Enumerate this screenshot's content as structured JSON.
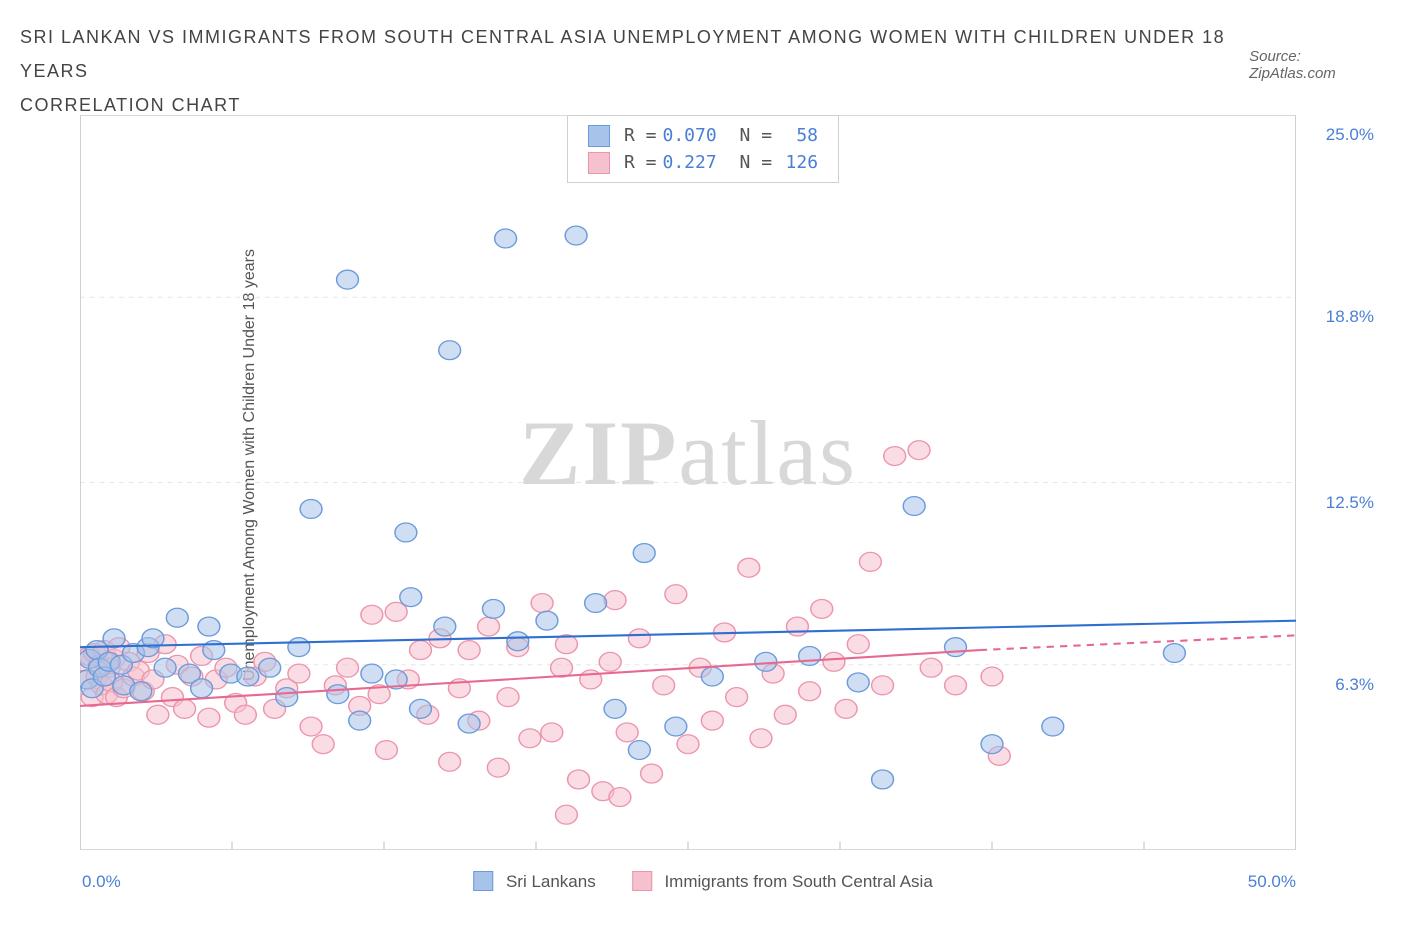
{
  "title_line1": "SRI LANKAN VS IMMIGRANTS FROM SOUTH CENTRAL ASIA UNEMPLOYMENT AMONG WOMEN WITH CHILDREN UNDER 18 YEARS",
  "title_line2": "CORRELATION CHART",
  "source_label": "Source: ZipAtlas.com",
  "chart": {
    "type": "scatter",
    "ylabel": "Unemployment Among Women with Children Under 18 years",
    "xlim": [
      0,
      50
    ],
    "ylim": [
      0,
      25
    ],
    "xtick_labels": [
      "0.0%",
      "50.0%"
    ],
    "ytick_positions": [
      6.3,
      12.5,
      18.8,
      25.0
    ],
    "ytick_labels": [
      "6.3%",
      "12.5%",
      "18.8%",
      "25.0%"
    ],
    "grid_color": "#e6e6e6",
    "axis_color": "#cccccc",
    "background_color": "#ffffff",
    "marker_radius": 9,
    "marker_opacity": 0.55,
    "trend_line_width": 2,
    "watermark": "ZIPatlas"
  },
  "series": [
    {
      "name": "Sri Lankans",
      "color_fill": "#a7c3ea",
      "color_stroke": "#6b9bdb",
      "trend_color": "#2f6fd0",
      "R": "0.070",
      "N": "58",
      "trend": {
        "x1": 0,
        "y1": 6.9,
        "x2": 50,
        "y2": 7.8
      },
      "points": [
        [
          0.3,
          5.8
        ],
        [
          0.4,
          6.5
        ],
        [
          0.5,
          5.5
        ],
        [
          0.7,
          6.8
        ],
        [
          0.8,
          6.2
        ],
        [
          1.0,
          5.9
        ],
        [
          1.2,
          6.4
        ],
        [
          1.4,
          7.2
        ],
        [
          1.7,
          6.3
        ],
        [
          1.8,
          5.6
        ],
        [
          2.2,
          6.7
        ],
        [
          2.5,
          5.4
        ],
        [
          2.8,
          6.9
        ],
        [
          3.0,
          7.2
        ],
        [
          3.5,
          6.2
        ],
        [
          4.0,
          7.9
        ],
        [
          4.5,
          6.0
        ],
        [
          5.0,
          5.5
        ],
        [
          5.3,
          7.6
        ],
        [
          5.5,
          6.8
        ],
        [
          6.2,
          6.0
        ],
        [
          6.9,
          5.9
        ],
        [
          7.8,
          6.2
        ],
        [
          8.5,
          5.2
        ],
        [
          9.0,
          6.9
        ],
        [
          9.5,
          11.6
        ],
        [
          10.6,
          5.3
        ],
        [
          11.0,
          19.4
        ],
        [
          11.5,
          4.4
        ],
        [
          12.0,
          6.0
        ],
        [
          13.0,
          5.8
        ],
        [
          13.4,
          10.8
        ],
        [
          13.6,
          8.6
        ],
        [
          14.0,
          4.8
        ],
        [
          15.0,
          7.6
        ],
        [
          15.2,
          17.0
        ],
        [
          16.0,
          4.3
        ],
        [
          17.0,
          8.2
        ],
        [
          17.5,
          20.8
        ],
        [
          18.0,
          7.1
        ],
        [
          19.2,
          7.8
        ],
        [
          20.4,
          20.9
        ],
        [
          21.2,
          8.4
        ],
        [
          22.0,
          4.8
        ],
        [
          23.0,
          3.4
        ],
        [
          23.2,
          10.1
        ],
        [
          24.5,
          4.2
        ],
        [
          26.0,
          5.9
        ],
        [
          28.2,
          6.4
        ],
        [
          30.0,
          6.6
        ],
        [
          32.0,
          5.7
        ],
        [
          33.0,
          2.4
        ],
        [
          34.3,
          11.7
        ],
        [
          36.0,
          6.9
        ],
        [
          37.5,
          3.6
        ],
        [
          40.0,
          4.2
        ],
        [
          45.0,
          6.7
        ]
      ]
    },
    {
      "name": "Immigrants from South Central Asia",
      "color_fill": "#f5c1ce",
      "color_stroke": "#ec95ac",
      "trend_color": "#e86990",
      "R": "0.227",
      "N": "126",
      "trend": {
        "x1": 0,
        "y1": 4.9,
        "x2": 37,
        "y2": 6.8
      },
      "trend_dashed": {
        "x1": 37,
        "y1": 6.8,
        "x2": 50,
        "y2": 7.3
      },
      "points": [
        [
          0.2,
          6.4
        ],
        [
          0.3,
          5.8
        ],
        [
          0.4,
          6.6
        ],
        [
          0.5,
          5.2
        ],
        [
          0.6,
          6.7
        ],
        [
          0.7,
          5.9
        ],
        [
          0.8,
          6.3
        ],
        [
          0.9,
          5.6
        ],
        [
          1.0,
          6.8
        ],
        [
          1.1,
          5.3
        ],
        [
          1.2,
          6.2
        ],
        [
          1.3,
          5.7
        ],
        [
          1.4,
          6.5
        ],
        [
          1.5,
          5.2
        ],
        [
          1.6,
          6.9
        ],
        [
          1.8,
          5.5
        ],
        [
          2.0,
          6.4
        ],
        [
          2.2,
          5.9
        ],
        [
          2.4,
          6.1
        ],
        [
          2.6,
          5.4
        ],
        [
          2.8,
          6.7
        ],
        [
          3.0,
          5.8
        ],
        [
          3.2,
          4.6
        ],
        [
          3.5,
          7.0
        ],
        [
          3.8,
          5.2
        ],
        [
          4.0,
          6.3
        ],
        [
          4.3,
          4.8
        ],
        [
          4.6,
          5.9
        ],
        [
          5.0,
          6.6
        ],
        [
          5.3,
          4.5
        ],
        [
          5.6,
          5.8
        ],
        [
          6.0,
          6.2
        ],
        [
          6.4,
          5.0
        ],
        [
          6.8,
          4.6
        ],
        [
          7.2,
          5.9
        ],
        [
          7.6,
          6.4
        ],
        [
          8.0,
          4.8
        ],
        [
          8.5,
          5.5
        ],
        [
          9.0,
          6.0
        ],
        [
          9.5,
          4.2
        ],
        [
          10.0,
          3.6
        ],
        [
          10.5,
          5.6
        ],
        [
          11.0,
          6.2
        ],
        [
          11.5,
          4.9
        ],
        [
          12.0,
          8.0
        ],
        [
          12.3,
          5.3
        ],
        [
          12.6,
          3.4
        ],
        [
          13.0,
          8.1
        ],
        [
          13.5,
          5.8
        ],
        [
          14.0,
          6.8
        ],
        [
          14.3,
          4.6
        ],
        [
          14.8,
          7.2
        ],
        [
          15.2,
          3.0
        ],
        [
          15.6,
          5.5
        ],
        [
          16.0,
          6.8
        ],
        [
          16.4,
          4.4
        ],
        [
          16.8,
          7.6
        ],
        [
          17.2,
          2.8
        ],
        [
          17.6,
          5.2
        ],
        [
          18.0,
          6.9
        ],
        [
          18.5,
          3.8
        ],
        [
          19.0,
          8.4
        ],
        [
          19.4,
          4.0
        ],
        [
          19.8,
          6.2
        ],
        [
          20.0,
          7.0
        ],
        [
          20.5,
          2.4
        ],
        [
          21.0,
          5.8
        ],
        [
          21.5,
          2.0
        ],
        [
          21.8,
          6.4
        ],
        [
          22.0,
          8.5
        ],
        [
          22.2,
          1.8
        ],
        [
          22.5,
          4.0
        ],
        [
          23.0,
          7.2
        ],
        [
          23.5,
          2.6
        ],
        [
          24.0,
          5.6
        ],
        [
          24.5,
          8.7
        ],
        [
          25.0,
          3.6
        ],
        [
          25.5,
          6.2
        ],
        [
          26.0,
          4.4
        ],
        [
          26.5,
          7.4
        ],
        [
          27.0,
          5.2
        ],
        [
          27.5,
          9.6
        ],
        [
          28.0,
          3.8
        ],
        [
          28.5,
          6.0
        ],
        [
          29.0,
          4.6
        ],
        [
          29.5,
          7.6
        ],
        [
          30.0,
          5.4
        ],
        [
          30.5,
          8.2
        ],
        [
          31.0,
          6.4
        ],
        [
          31.5,
          4.8
        ],
        [
          32.0,
          7.0
        ],
        [
          32.5,
          9.8
        ],
        [
          33.0,
          5.6
        ],
        [
          33.5,
          13.4
        ],
        [
          34.5,
          13.6
        ],
        [
          35.0,
          6.2
        ],
        [
          36.0,
          5.6
        ],
        [
          37.5,
          5.9
        ],
        [
          37.8,
          3.2
        ],
        [
          20.0,
          1.2
        ]
      ]
    }
  ],
  "legend": {
    "series1_label": "Sri Lankans",
    "series2_label": "Immigrants from South Central Asia"
  },
  "stats_labels": {
    "R": "R =",
    "N": "N ="
  }
}
